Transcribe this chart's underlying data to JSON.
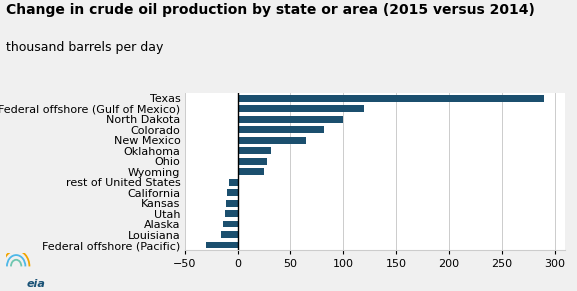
{
  "title_line1": "Change in crude oil production by state or area (2015 versus 2014)",
  "title_line2": "thousand barrels per day",
  "categories": [
    "Texas",
    "Federal offshore (Gulf of Mexico)",
    "North Dakota",
    "Colorado",
    "New Mexico",
    "Oklahoma",
    "Ohio",
    "Wyoming",
    "rest of United States",
    "California",
    "Kansas",
    "Utah",
    "Alaska",
    "Louisiana",
    "Federal offshore (Pacific)"
  ],
  "values": [
    290,
    120,
    100,
    82,
    65,
    32,
    28,
    25,
    -8,
    -10,
    -11,
    -12,
    -14,
    -16,
    -30
  ],
  "bar_color": "#1b4f6e",
  "xlim": [
    -50,
    310
  ],
  "xticks": [
    -50,
    0,
    50,
    100,
    150,
    200,
    250,
    300
  ],
  "grid_color": "#cccccc",
  "plot_bg_color": "#ffffff",
  "fig_bg_color": "#f0f0f0",
  "bar_height": 0.65,
  "title_fontsize": 10,
  "subtitle_fontsize": 9,
  "tick_fontsize": 8,
  "label_fontsize": 8,
  "logo_colors": [
    "#6ec6b0",
    "#4eb8e8",
    "#f0a500"
  ]
}
